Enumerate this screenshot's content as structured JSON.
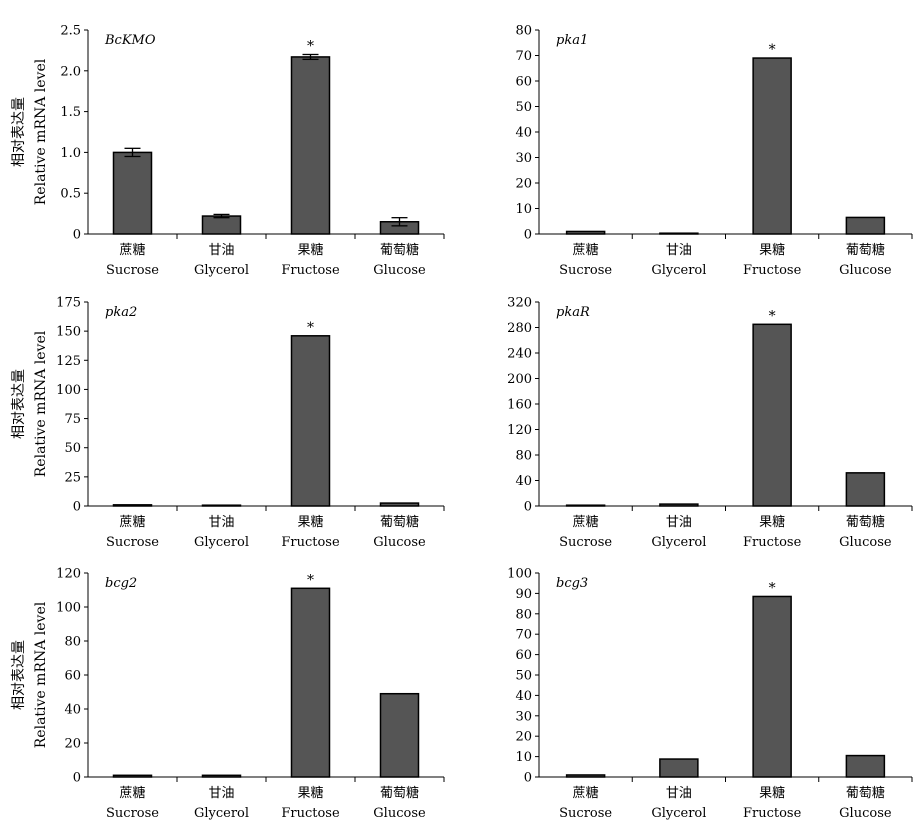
{
  "y_label_zh": "相对表达量",
  "y_label_en": "Relative mRNA level",
  "chart_data": [
    {
      "type": "bar",
      "title": "BcKMO",
      "categories": [
        "Sucrose",
        "Glycerol",
        "Fructose",
        "Glucose"
      ],
      "categories_zh": [
        "蔗糖",
        "甘油",
        "果糖",
        "葡萄糖"
      ],
      "values": [
        1.0,
        0.22,
        2.17,
        0.15
      ],
      "errors": [
        0.05,
        0.02,
        0.03,
        0.05
      ],
      "significance": [
        "",
        "",
        "*",
        ""
      ],
      "ylabel": "Relative mRNA level",
      "ylim": [
        0,
        2.5
      ],
      "yticks": [
        0,
        0.5,
        1.0,
        1.5,
        2.0,
        2.5
      ],
      "ytick_labels": [
        "0",
        "0.5",
        "1.0",
        "1.5",
        "2.0",
        "2.5"
      ],
      "bar_color": "#555555",
      "grid": false
    },
    {
      "type": "bar",
      "title": "pka1",
      "categories": [
        "Sucrose",
        "Glycerol",
        "Fructose",
        "Glucose"
      ],
      "categories_zh": [
        "蔗糖",
        "甘油",
        "果糖",
        "葡萄糖"
      ],
      "values": [
        1.0,
        0.1,
        69,
        6.5
      ],
      "significance": [
        "",
        "",
        "*",
        ""
      ],
      "ylim": [
        0,
        80
      ],
      "yticks": [
        0,
        10,
        20,
        30,
        40,
        50,
        60,
        70,
        80
      ],
      "ytick_labels": [
        "0",
        "10",
        "20",
        "30",
        "40",
        "50",
        "60",
        "70",
        "80"
      ],
      "bar_color": "#555555",
      "grid": false
    },
    {
      "type": "bar",
      "title": "pka2",
      "categories": [
        "Sucrose",
        "Glycerol",
        "Fructose",
        "Glucose"
      ],
      "categories_zh": [
        "蔗糖",
        "甘油",
        "果糖",
        "葡萄糖"
      ],
      "values": [
        1.0,
        0.2,
        146,
        2.5
      ],
      "significance": [
        "",
        "",
        "*",
        ""
      ],
      "ylabel": "Relative mRNA level",
      "ylim": [
        0,
        175
      ],
      "yticks": [
        0,
        25,
        50,
        75,
        100,
        125,
        150,
        175
      ],
      "ytick_labels": [
        "0",
        "25",
        "50",
        "75",
        "100",
        "125",
        "150",
        "175"
      ],
      "bar_color": "#555555",
      "grid": false
    },
    {
      "type": "bar",
      "title": "pkaR",
      "categories": [
        "Sucrose",
        "Glycerol",
        "Fructose",
        "Glucose"
      ],
      "categories_zh": [
        "蔗糖",
        "甘油",
        "果糖",
        "葡萄糖"
      ],
      "values": [
        1.0,
        3,
        285,
        52
      ],
      "significance": [
        "",
        "",
        "*",
        ""
      ],
      "ylim": [
        0,
        320
      ],
      "yticks": [
        0,
        40,
        80,
        120,
        160,
        200,
        240,
        280,
        320
      ],
      "ytick_labels": [
        "0",
        "40",
        "80",
        "120",
        "160",
        "200",
        "240",
        "280",
        "320"
      ],
      "bar_color": "#555555",
      "grid": false
    },
    {
      "type": "bar",
      "title": "bcg2",
      "categories": [
        "Sucrose",
        "Glycerol",
        "Fructose",
        "Glucose"
      ],
      "categories_zh": [
        "蔗糖",
        "甘油",
        "果糖",
        "葡萄糖"
      ],
      "values": [
        1.0,
        1.0,
        111,
        49
      ],
      "significance": [
        "",
        "",
        "*",
        ""
      ],
      "ylabel": "Relative mRNA level",
      "ylim": [
        0,
        120
      ],
      "yticks": [
        0,
        20,
        40,
        60,
        80,
        100,
        120
      ],
      "ytick_labels": [
        "0",
        "20",
        "40",
        "60",
        "80",
        "100",
        "120"
      ],
      "bar_color": "#555555",
      "grid": false
    },
    {
      "type": "bar",
      "title": "bcg3",
      "categories": [
        "Sucrose",
        "Glycerol",
        "Fructose",
        "Glucose"
      ],
      "categories_zh": [
        "蔗糖",
        "甘油",
        "果糖",
        "葡萄糖"
      ],
      "values": [
        1.0,
        8.8,
        88.5,
        10.5
      ],
      "significance": [
        "",
        "",
        "*",
        ""
      ],
      "ylim": [
        0,
        100
      ],
      "yticks": [
        0,
        10,
        20,
        30,
        40,
        50,
        60,
        70,
        80,
        90,
        100
      ],
      "ytick_labels": [
        "0",
        "10",
        "20",
        "30",
        "40",
        "50",
        "60",
        "70",
        "80",
        "90",
        "100"
      ],
      "bar_color": "#555555",
      "grid": false
    }
  ]
}
